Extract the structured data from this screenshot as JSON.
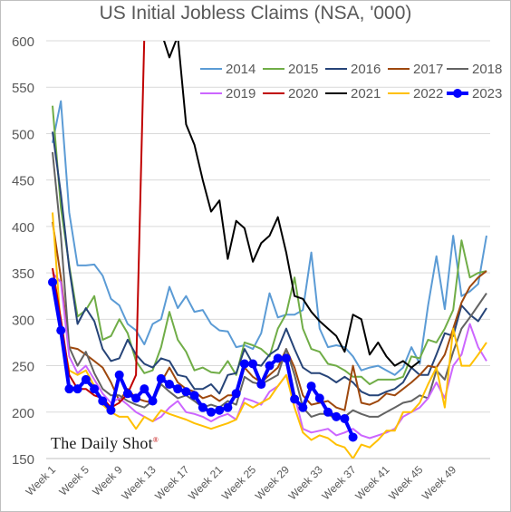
{
  "chart_data": {
    "type": "line",
    "title": "US Initial Jobless Claims (NSA, '000)",
    "xlabel": "",
    "ylabel": "",
    "ylim": [
      150,
      600
    ],
    "yticks": [
      150,
      200,
      250,
      300,
      350,
      400,
      450,
      500,
      550,
      600
    ],
    "xticks": [
      "Week 1",
      "Week 5",
      "Week 9",
      "Week 13",
      "Week 17",
      "Week 21",
      "Week 25",
      "Week 29",
      "Week 33",
      "Week 37",
      "Week 41",
      "Week 45",
      "Week 49"
    ],
    "grid": "horizontal",
    "legend_placement": "top-right",
    "series": [
      {
        "name": "2014",
        "color": "#5b9bd5",
        "values": [
          490,
          535,
          415,
          358,
          358,
          359,
          347,
          322,
          315,
          295,
          288,
          273,
          295,
          300,
          335,
          312,
          325,
          308,
          310,
          295,
          288,
          287,
          270,
          272,
          268,
          285,
          328,
          302,
          305,
          305,
          310,
          372,
          290,
          270,
          272,
          270,
          260,
          245,
          248,
          250,
          245,
          240,
          248,
          270,
          252,
          315,
          368,
          311,
          390,
          325,
          330,
          338,
          390
        ]
      },
      {
        "name": "2015",
        "color": "#70ad47",
        "values": [
          530,
          420,
          358,
          303,
          310,
          325,
          278,
          282,
          300,
          285,
          255,
          242,
          245,
          270,
          308,
          278,
          265,
          245,
          248,
          243,
          242,
          255,
          240,
          275,
          272,
          268,
          260,
          290,
          306,
          345,
          290,
          268,
          265,
          252,
          250,
          245,
          238,
          238,
          230,
          235,
          235,
          235,
          238,
          260,
          258,
          278,
          275,
          290,
          310,
          385,
          345,
          350,
          352
        ]
      },
      {
        "name": "2016",
        "color": "#264478",
        "values": [
          502,
          435,
          355,
          295,
          312,
          298,
          268,
          255,
          258,
          278,
          262,
          252,
          248,
          258,
          255,
          240,
          238,
          225,
          225,
          230,
          220,
          240,
          242,
          268,
          252,
          250,
          262,
          268,
          290,
          268,
          248,
          242,
          242,
          238,
          232,
          238,
          232,
          222,
          218,
          218,
          222,
          225,
          232,
          248,
          240,
          240,
          262,
          285,
          282,
          315,
          305,
          298,
          312
        ]
      },
      {
        "name": "2017",
        "color": "#9e480e",
        "values": [
          405,
          345,
          270,
          268,
          262,
          255,
          248,
          232,
          212,
          225,
          215,
          212,
          210,
          232,
          248,
          232,
          225,
          222,
          215,
          218,
          212,
          218,
          218,
          248,
          238,
          232,
          240,
          248,
          268,
          248,
          218,
          208,
          210,
          212,
          205,
          202,
          250,
          210,
          208,
          212,
          220,
          218,
          225,
          232,
          240,
          250,
          248,
          262,
          290,
          318,
          335,
          345,
          352
        ]
      },
      {
        "name": "2018",
        "color": "#636363",
        "values": [
          480,
          390,
          270,
          250,
          265,
          242,
          225,
          218,
          218,
          212,
          208,
          205,
          212,
          230,
          222,
          215,
          218,
          212,
          205,
          208,
          205,
          212,
          208,
          238,
          232,
          230,
          235,
          240,
          268,
          240,
          205,
          195,
          198,
          198,
          192,
          195,
          202,
          198,
          195,
          195,
          200,
          205,
          210,
          212,
          218,
          215,
          245,
          235,
          265,
          290,
          302,
          315,
          328
        ]
      },
      {
        "name": "2019",
        "color": "#cc66ff",
        "values": [
          350,
          340,
          260,
          242,
          250,
          235,
          220,
          210,
          215,
          208,
          200,
          195,
          190,
          195,
          205,
          212,
          200,
          198,
          195,
          190,
          195,
          198,
          192,
          215,
          212,
          208,
          222,
          228,
          240,
          218,
          182,
          178,
          180,
          182,
          175,
          178,
          182,
          175,
          172,
          175,
          178,
          182,
          195,
          200,
          205,
          215,
          232,
          215,
          250,
          262,
          295,
          270,
          255
        ]
      },
      {
        "name": "2020",
        "color": "#c00000",
        "values": [
          355,
          300,
          240,
          225,
          225,
          218,
          215,
          205,
          210,
          220,
          240,
          605,
          null,
          null,
          null,
          null,
          null,
          null,
          null,
          null,
          null,
          null,
          null,
          null,
          null,
          null,
          null,
          null,
          null,
          null,
          null,
          null,
          null,
          null,
          null,
          null,
          null,
          null,
          null,
          null,
          null,
          null,
          null,
          null,
          null,
          null,
          null,
          null,
          null,
          null,
          null,
          null,
          null
        ]
      },
      {
        "name": "2021",
        "color": "#000000",
        "values": [
          null,
          null,
          null,
          null,
          null,
          null,
          null,
          null,
          null,
          null,
          null,
          null,
          null,
          null,
          null,
          null,
          null,
          null,
          null,
          null,
          null,
          null,
          null,
          null,
          null,
          null,
          null,
          null,
          null,
          null,
          null,
          null,
          null,
          null,
          null,
          null,
          null,
          null,
          null,
          null,
          null,
          null,
          null,
          null,
          null,
          null,
          null,
          null,
          null,
          null,
          null,
          null,
          null
        ]
      },
      {
        "name": "2022",
        "color": "#ffc000",
        "values": [
          415,
          290,
          245,
          240,
          245,
          228,
          208,
          200,
          195,
          195,
          182,
          195,
          190,
          202,
          198,
          195,
          192,
          188,
          185,
          182,
          185,
          188,
          192,
          210,
          205,
          210,
          215,
          228,
          240,
          205,
          178,
          170,
          175,
          172,
          165,
          162,
          150,
          165,
          162,
          170,
          180,
          180,
          200,
          200,
          210,
          230,
          248,
          205,
          290,
          250,
          250,
          262,
          275
        ]
      },
      {
        "name": "2023",
        "color": "#0000ff",
        "values": [
          340,
          288,
          225,
          225,
          235,
          225,
          212,
          202,
          240,
          220,
          215,
          225,
          212,
          236,
          230,
          225,
          222,
          218,
          205,
          200,
          202,
          205,
          220,
          252,
          252,
          230,
          250,
          258,
          258,
          214,
          205,
          228,
          215,
          200,
          195,
          193,
          173,
          null,
          null,
          null,
          null,
          null,
          null,
          null,
          null,
          null,
          null,
          null,
          null,
          null,
          null,
          null,
          null
        ]
      }
    ]
  },
  "series_2021_values": [
    null,
    null,
    null,
    null,
    null,
    null,
    null,
    null,
    null,
    null,
    null,
    null,
    null,
    null,
    null,
    null,
    null,
    null,
    null,
    null,
    null,
    null,
    null,
    null,
    null,
    null,
    null,
    null,
    null,
    null,
    null,
    null,
    null,
    null,
    null,
    null,
    null,
    null,
    null,
    null,
    null,
    null,
    null,
    null,
    null,
    null,
    null,
    null,
    null,
    null,
    null,
    null,
    null
  ],
  "watermark": "The Daily Shot"
}
